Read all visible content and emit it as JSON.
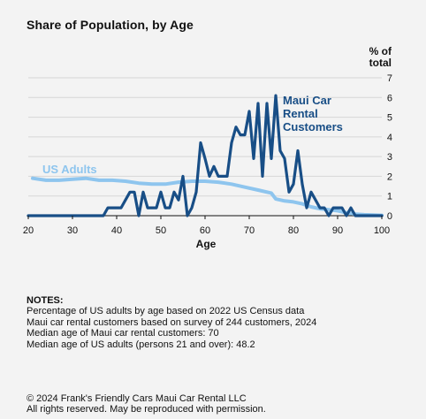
{
  "title": "Share of Population, by Age",
  "notes": {
    "heading": "NOTES:",
    "lines": [
      "Percentage of US adults by age based on 2022 US Census data",
      "Maui car rental customers based on survey of 244 customers, 2024",
      "Median age of Maui car rental customers: 70",
      "Median age of US adults (persons 21 and over): 48.2"
    ]
  },
  "footer": {
    "copyright": "© 2024 Frank's Friendly Cars Maui Car Rental LLC",
    "rights": "All rights reserved. May be reproduced with permission."
  },
  "chart_data": {
    "type": "line",
    "xlabel": "Age",
    "ylabel_line1": "% of",
    "ylabel_line2": "total",
    "xlim": [
      20,
      100
    ],
    "ylim": [
      0,
      7
    ],
    "xticks": [
      20,
      30,
      40,
      50,
      60,
      70,
      80,
      90,
      100
    ],
    "yticks": [
      0,
      1,
      2,
      3,
      4,
      5,
      6,
      7
    ],
    "grid": "horizontal",
    "legend": "direct labels on lines",
    "series": [
      {
        "name": "US Adults",
        "label_lines": [
          "US Adults"
        ],
        "color": "#8ec5ee",
        "x": [
          21,
          24,
          27,
          30,
          33,
          36,
          39,
          42,
          45,
          48,
          51,
          54,
          57,
          60,
          63,
          66,
          69,
          72,
          75,
          76,
          78,
          80,
          82,
          84,
          86,
          88,
          90,
          92,
          94,
          96,
          98,
          100
        ],
        "y": [
          1.9,
          1.8,
          1.8,
          1.85,
          1.9,
          1.8,
          1.8,
          1.75,
          1.65,
          1.6,
          1.6,
          1.7,
          1.75,
          1.75,
          1.7,
          1.6,
          1.45,
          1.3,
          1.15,
          0.85,
          0.75,
          0.7,
          0.6,
          0.45,
          0.35,
          0.3,
          0.25,
          0.15,
          0.08,
          0.05,
          0.03,
          0.02
        ]
      },
      {
        "name": "Maui Car Rental Customers",
        "label_lines": [
          "Maui Car",
          "Rental",
          "Customers"
        ],
        "color": "#184e86",
        "x": [
          20,
          21,
          22,
          23,
          24,
          25,
          26,
          27,
          28,
          29,
          30,
          31,
          32,
          33,
          34,
          35,
          36,
          37,
          38,
          39,
          40,
          41,
          42,
          43,
          44,
          45,
          46,
          47,
          48,
          49,
          50,
          51,
          52,
          53,
          54,
          55,
          56,
          57,
          58,
          59,
          60,
          61,
          62,
          63,
          64,
          65,
          66,
          67,
          68,
          69,
          70,
          71,
          72,
          73,
          74,
          75,
          76,
          77,
          78,
          79,
          80,
          81,
          82,
          83,
          84,
          85,
          86,
          87,
          88,
          89,
          90,
          91,
          92,
          93,
          94,
          95,
          96,
          97,
          98,
          99,
          100
        ],
        "y": [
          0,
          0,
          0,
          0,
          0,
          0,
          0,
          0,
          0,
          0,
          0,
          0,
          0,
          0,
          0,
          0,
          0,
          0,
          0.4,
          0.4,
          0.4,
          0.4,
          0.8,
          1.2,
          1.2,
          0,
          1.2,
          0.4,
          0.4,
          0.4,
          1.2,
          0.4,
          0.4,
          1.2,
          0.8,
          2.0,
          0,
          0.4,
          1.2,
          3.7,
          2.9,
          2.0,
          2.5,
          2.0,
          2.0,
          2.0,
          3.7,
          4.5,
          4.1,
          4.1,
          5.3,
          2.9,
          5.7,
          2.0,
          5.7,
          2.9,
          6.1,
          3.3,
          2.9,
          1.2,
          1.6,
          3.3,
          1.6,
          0.4,
          1.2,
          0.8,
          0.4,
          0.4,
          0,
          0.4,
          0.4,
          0.4,
          0,
          0.4,
          0,
          0,
          0,
          0,
          0,
          0,
          0
        ]
      }
    ]
  }
}
